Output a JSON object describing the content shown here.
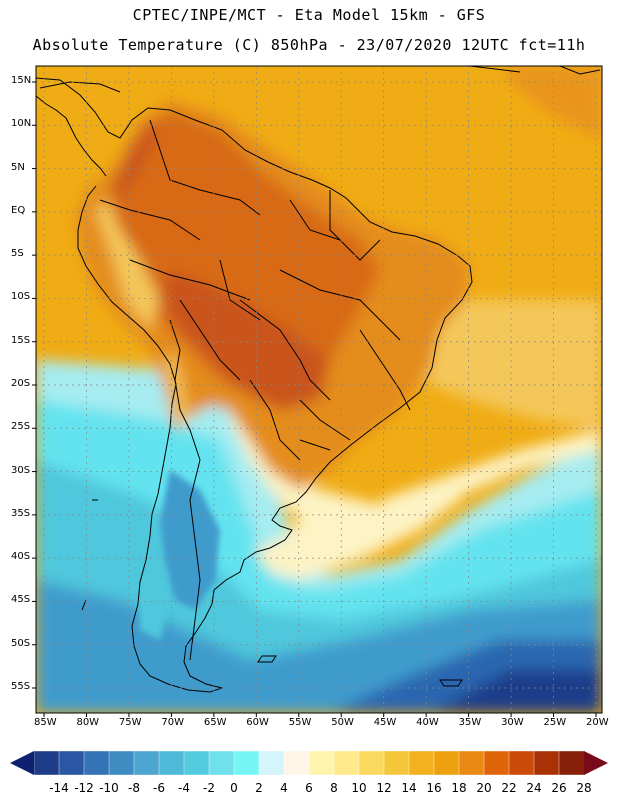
{
  "header": {
    "line1": "CPTEC/INPE/MCT -  Eta Model 15km - GFS",
    "line2": "Absolute Temperature (C) 850hPa - 23/07/2020 12UTC fct=11h"
  },
  "axes": {
    "lat_labels": [
      "15N",
      "10N",
      "5N",
      "EQ",
      "5S",
      "10S",
      "15S",
      "20S",
      "25S",
      "30S",
      "35S",
      "40S",
      "45S",
      "50S",
      "55S"
    ],
    "lon_labels": [
      "85W",
      "80W",
      "75W",
      "70W",
      "65W",
      "60W",
      "55W",
      "50W",
      "45W",
      "40W",
      "35W",
      "30W",
      "25W",
      "20W"
    ]
  },
  "colorbar": {
    "labels": [
      "-14",
      "-12",
      "-10",
      "-8",
      "-6",
      "-4",
      "-2",
      "0",
      "2",
      "4",
      "6",
      "8",
      "10",
      "12",
      "14",
      "16",
      "18",
      "20",
      "22",
      "24",
      "26",
      "28"
    ],
    "colors": [
      "#1f3c88",
      "#2a57a3",
      "#3473b5",
      "#3f8cc3",
      "#4ba5cf",
      "#4fbad8",
      "#55cbe0",
      "#6fe0ec",
      "#77f5f5",
      "#d3f5fb",
      "#fff6e8",
      "#fff4ad",
      "#ffe98a",
      "#fbd860",
      "#f6c63b",
      "#f3b01f",
      "#eea10f",
      "#e98812",
      "#e0650a",
      "#cc4a08",
      "#a93105",
      "#872008"
    ],
    "end_low": "#0d2170",
    "end_high": "#7a0a1a"
  },
  "map_colors": {
    "ocean_warm": "#f0ac14",
    "ocean_hot": "#e9951a",
    "land_warm": "#e48c1c",
    "land_hot": "#d86a14",
    "hot_core": "#c9551c",
    "andes_cool": "#f4c75a",
    "front_pale": "#fdf3c4",
    "cool_light": "#a6ecf1",
    "cool_cyan": "#63e3ef",
    "cool_mid": "#50c7dc",
    "cool_deep": "#3f9bcd",
    "cold": "#2b66b0",
    "coldest": "#1b3c8a",
    "coast": "#000000"
  }
}
